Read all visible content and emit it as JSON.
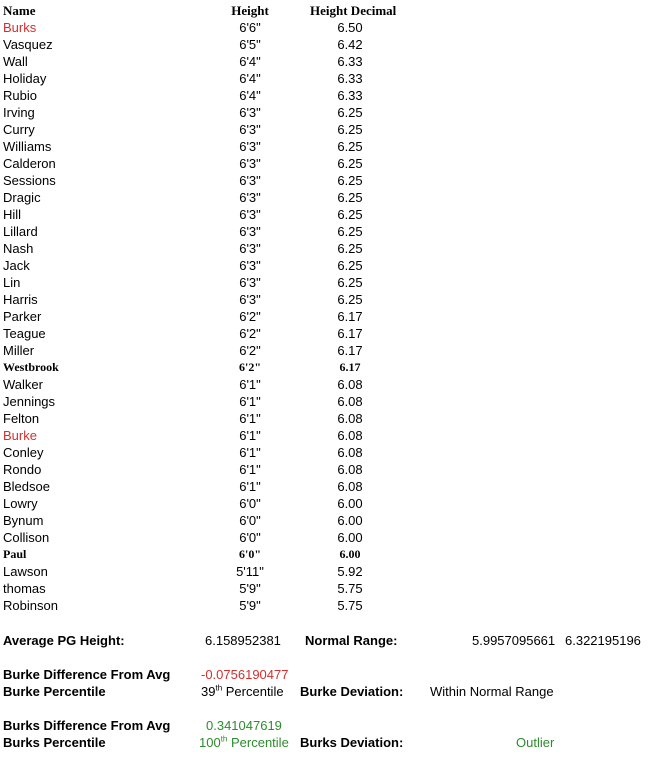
{
  "header": {
    "name": "Name",
    "height": "Height",
    "decimal": "Height Decimal"
  },
  "rows": [
    {
      "name": "Burks",
      "height": "6'6\"",
      "decimal": "6.50",
      "highlight": "red"
    },
    {
      "name": "Vasquez",
      "height": "6'5\"",
      "decimal": "6.42"
    },
    {
      "name": "Wall",
      "height": "6'4\"",
      "decimal": "6.33"
    },
    {
      "name": "Holiday",
      "height": "6'4\"",
      "decimal": "6.33"
    },
    {
      "name": "Rubio",
      "height": "6'4\"",
      "decimal": "6.33"
    },
    {
      "name": "Irving",
      "height": "6'3\"",
      "decimal": "6.25"
    },
    {
      "name": "Curry",
      "height": "6'3\"",
      "decimal": "6.25"
    },
    {
      "name": "Williams",
      "height": "6'3\"",
      "decimal": "6.25"
    },
    {
      "name": "Calderon",
      "height": "6'3\"",
      "decimal": "6.25"
    },
    {
      "name": "Sessions",
      "height": "6'3\"",
      "decimal": "6.25"
    },
    {
      "name": "Dragic",
      "height": "6'3\"",
      "decimal": "6.25"
    },
    {
      "name": "Hill",
      "height": "6'3\"",
      "decimal": "6.25"
    },
    {
      "name": "Lillard",
      "height": "6'3\"",
      "decimal": "6.25"
    },
    {
      "name": "Nash",
      "height": "6'3\"",
      "decimal": "6.25"
    },
    {
      "name": "Jack",
      "height": "6'3\"",
      "decimal": "6.25"
    },
    {
      "name": "Lin",
      "height": "6'3\"",
      "decimal": "6.25"
    },
    {
      "name": "Harris",
      "height": "6'3\"",
      "decimal": "6.25"
    },
    {
      "name": "Parker",
      "height": "6'2\"",
      "decimal": "6.17"
    },
    {
      "name": "Teague",
      "height": "6'2\"",
      "decimal": "6.17"
    },
    {
      "name": "Miller",
      "height": "6'2\"",
      "decimal": "6.17"
    },
    {
      "name": "Westbrook",
      "height": "6'2\"",
      "decimal": "6.17",
      "style": "serif"
    },
    {
      "name": "Walker",
      "height": "6'1\"",
      "decimal": "6.08"
    },
    {
      "name": "Jennings",
      "height": "6'1\"",
      "decimal": "6.08"
    },
    {
      "name": "Felton",
      "height": "6'1\"",
      "decimal": "6.08"
    },
    {
      "name": "Burke",
      "height": "6'1\"",
      "decimal": "6.08",
      "highlight": "red"
    },
    {
      "name": "Conley",
      "height": "6'1\"",
      "decimal": "6.08"
    },
    {
      "name": "Rondo",
      "height": "6'1\"",
      "decimal": "6.08"
    },
    {
      "name": "Bledsoe",
      "height": "6'1\"",
      "decimal": "6.08"
    },
    {
      "name": "Lowry",
      "height": "6'0\"",
      "decimal": "6.00"
    },
    {
      "name": "Bynum",
      "height": "6'0\"",
      "decimal": "6.00"
    },
    {
      "name": "Collison",
      "height": "6'0\"",
      "decimal": "6.00"
    },
    {
      "name": "Paul",
      "height": "6'0\"",
      "decimal": "6.00",
      "style": "serif"
    },
    {
      "name": "Lawson",
      "height": "5'11\"",
      "decimal": "5.92"
    },
    {
      "name": "thomas",
      "height": "5'9\"",
      "decimal": "5.75"
    },
    {
      "name": "Robinson",
      "height": "5'9\"",
      "decimal": "5.75"
    }
  ],
  "summary": {
    "avg_label": "Average PG Height:",
    "avg_value": "6.158952381",
    "range_label": "Normal Range:",
    "range_low": "5.9957095661",
    "range_high": "6.322195196",
    "burke_diff_label": "Burke Difference From Avg",
    "burke_diff_value": "-0.0756190477",
    "burke_pct_label": "Burke Percentile",
    "burke_pct_num": "39",
    "burke_pct_sup": "th",
    "burke_pct_word": " Percentile",
    "burke_dev_label": "Burke Deviation:",
    "burke_dev_value": "Within Normal Range",
    "burks_diff_label": "Burks Difference From Avg",
    "burks_diff_value": "0.341047619",
    "burks_pct_label": "Burks Percentile",
    "burks_pct_num": "100",
    "burks_pct_sup": "th",
    "burks_pct_word": " Percentile",
    "burks_dev_label": "Burks Deviation:",
    "burks_dev_value": "Outlier"
  },
  "colors": {
    "highlight_red": "#d32f2f",
    "highlight_green": "#2e8b2e"
  }
}
